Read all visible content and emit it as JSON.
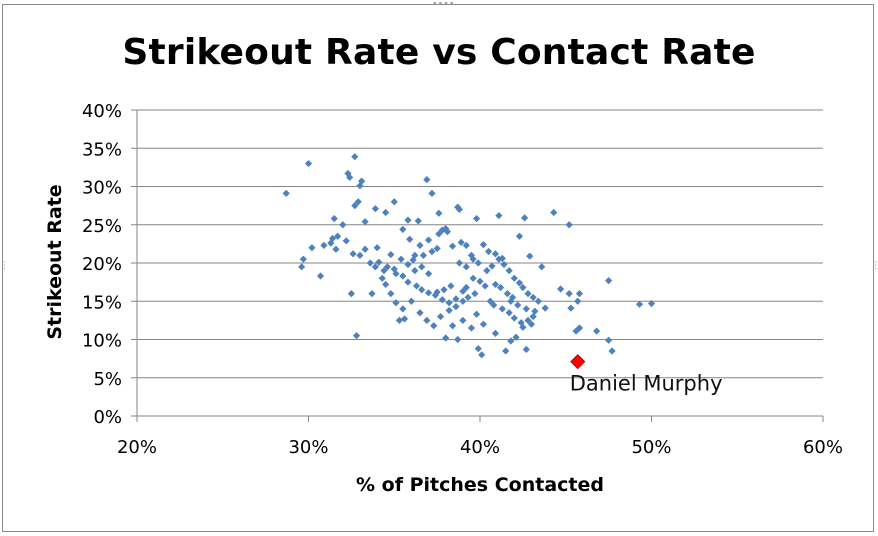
{
  "chart_data": {
    "type": "scatter",
    "title": "Strikeout Rate vs Contact Rate",
    "xlabel": "% of Pitches Contacted",
    "ylabel": "Strikeout Rate",
    "xlim": [
      0.2,
      0.6
    ],
    "ylim": [
      0,
      0.4
    ],
    "xticks": [
      "20%",
      "30%",
      "40%",
      "50%",
      "60%"
    ],
    "yticks": [
      "0%",
      "5%",
      "10%",
      "15%",
      "20%",
      "25%",
      "30%",
      "35%",
      "40%"
    ],
    "grid": "horizontal",
    "colors": {
      "series": "#4f81bd",
      "highlight": "#ff0000",
      "grid": "#868686"
    },
    "series": [
      {
        "points": [
          [
            0.287,
            0.291
          ],
          [
            0.3,
            0.33
          ],
          [
            0.327,
            0.339
          ],
          [
            0.324,
            0.312
          ],
          [
            0.329,
            0.28
          ],
          [
            0.331,
            0.307
          ],
          [
            0.33,
            0.301
          ],
          [
            0.339,
            0.271
          ],
          [
            0.333,
            0.254
          ],
          [
            0.327,
            0.275
          ],
          [
            0.323,
            0.317
          ],
          [
            0.315,
            0.258
          ],
          [
            0.32,
            0.25
          ],
          [
            0.317,
            0.235
          ],
          [
            0.313,
            0.226
          ],
          [
            0.309,
            0.223
          ],
          [
            0.316,
            0.218
          ],
          [
            0.302,
            0.22
          ],
          [
            0.297,
            0.205
          ],
          [
            0.296,
            0.195
          ],
          [
            0.307,
            0.183
          ],
          [
            0.314,
            0.232
          ],
          [
            0.322,
            0.229
          ],
          [
            0.326,
            0.212
          ],
          [
            0.33,
            0.21
          ],
          [
            0.345,
            0.266
          ],
          [
            0.35,
            0.28
          ],
          [
            0.355,
            0.244
          ],
          [
            0.358,
            0.256
          ],
          [
            0.364,
            0.255
          ],
          [
            0.369,
            0.309
          ],
          [
            0.372,
            0.291
          ],
          [
            0.376,
            0.265
          ],
          [
            0.378,
            0.243
          ],
          [
            0.381,
            0.241
          ],
          [
            0.387,
            0.273
          ],
          [
            0.388,
            0.27
          ],
          [
            0.359,
            0.231
          ],
          [
            0.365,
            0.223
          ],
          [
            0.37,
            0.23
          ],
          [
            0.375,
            0.219
          ],
          [
            0.362,
            0.21
          ],
          [
            0.354,
            0.205
          ],
          [
            0.348,
            0.211
          ],
          [
            0.34,
            0.22
          ],
          [
            0.336,
            0.2
          ],
          [
            0.339,
            0.195
          ],
          [
            0.344,
            0.19
          ],
          [
            0.351,
            0.186
          ],
          [
            0.355,
            0.183
          ],
          [
            0.358,
            0.175
          ],
          [
            0.363,
            0.17
          ],
          [
            0.366,
            0.165
          ],
          [
            0.37,
            0.161
          ],
          [
            0.374,
            0.158
          ],
          [
            0.378,
            0.152
          ],
          [
            0.382,
            0.148
          ],
          [
            0.386,
            0.153
          ],
          [
            0.39,
            0.163
          ],
          [
            0.392,
            0.168
          ],
          [
            0.395,
            0.21
          ],
          [
            0.399,
            0.2
          ],
          [
            0.398,
            0.258
          ],
          [
            0.402,
            0.224
          ],
          [
            0.405,
            0.215
          ],
          [
            0.409,
            0.212
          ],
          [
            0.411,
            0.205
          ],
          [
            0.414,
            0.198
          ],
          [
            0.417,
            0.19
          ],
          [
            0.42,
            0.18
          ],
          [
            0.423,
            0.174
          ],
          [
            0.425,
            0.168
          ],
          [
            0.428,
            0.16
          ],
          [
            0.431,
            0.155
          ],
          [
            0.434,
            0.15
          ],
          [
            0.411,
            0.262
          ],
          [
            0.426,
            0.259
          ],
          [
            0.423,
            0.235
          ],
          [
            0.429,
            0.209
          ],
          [
            0.436,
            0.195
          ],
          [
            0.443,
            0.266
          ],
          [
            0.452,
            0.25
          ],
          [
            0.447,
            0.166
          ],
          [
            0.452,
            0.16
          ],
          [
            0.458,
            0.16
          ],
          [
            0.457,
            0.15
          ],
          [
            0.453,
            0.141
          ],
          [
            0.458,
            0.115
          ],
          [
            0.456,
            0.111
          ],
          [
            0.438,
            0.141
          ],
          [
            0.432,
            0.137
          ],
          [
            0.428,
            0.125
          ],
          [
            0.425,
            0.116
          ],
          [
            0.421,
            0.103
          ],
          [
            0.418,
            0.098
          ],
          [
            0.415,
            0.085
          ],
          [
            0.427,
            0.087
          ],
          [
            0.409,
            0.108
          ],
          [
            0.402,
            0.12
          ],
          [
            0.398,
            0.133
          ],
          [
            0.395,
            0.115
          ],
          [
            0.39,
            0.125
          ],
          [
            0.387,
            0.1
          ],
          [
            0.384,
            0.118
          ],
          [
            0.38,
            0.102
          ],
          [
            0.377,
            0.13
          ],
          [
            0.373,
            0.118
          ],
          [
            0.369,
            0.125
          ],
          [
            0.356,
            0.127
          ],
          [
            0.353,
            0.125
          ],
          [
            0.351,
            0.148
          ],
          [
            0.348,
            0.16
          ],
          [
            0.345,
            0.172
          ],
          [
            0.343,
            0.18
          ],
          [
            0.337,
            0.16
          ],
          [
            0.325,
            0.16
          ],
          [
            0.328,
            0.105
          ],
          [
            0.399,
            0.088
          ],
          [
            0.401,
            0.08
          ],
          [
            0.409,
            0.172
          ],
          [
            0.412,
            0.168
          ],
          [
            0.416,
            0.16
          ],
          [
            0.419,
            0.155
          ],
          [
            0.404,
            0.19
          ],
          [
            0.407,
            0.196
          ],
          [
            0.375,
            0.162
          ],
          [
            0.379,
            0.165
          ],
          [
            0.383,
            0.17
          ],
          [
            0.362,
            0.19
          ],
          [
            0.366,
            0.195
          ],
          [
            0.37,
            0.186
          ],
          [
            0.355,
            0.14
          ],
          [
            0.36,
            0.15
          ],
          [
            0.365,
            0.135
          ],
          [
            0.388,
            0.2
          ],
          [
            0.392,
            0.195
          ],
          [
            0.396,
            0.18
          ],
          [
            0.4,
            0.176
          ],
          [
            0.403,
            0.17
          ],
          [
            0.406,
            0.15
          ],
          [
            0.408,
            0.145
          ],
          [
            0.413,
            0.14
          ],
          [
            0.417,
            0.135
          ],
          [
            0.42,
            0.128
          ],
          [
            0.424,
            0.122
          ],
          [
            0.43,
            0.12
          ],
          [
            0.475,
            0.177
          ],
          [
            0.468,
            0.111
          ],
          [
            0.475,
            0.099
          ],
          [
            0.477,
            0.085
          ],
          [
            0.493,
            0.146
          ],
          [
            0.5,
            0.147
          ],
          [
            0.382,
            0.138
          ],
          [
            0.386,
            0.143
          ],
          [
            0.39,
            0.15
          ],
          [
            0.393,
            0.155
          ],
          [
            0.397,
            0.16
          ],
          [
            0.341,
            0.201
          ],
          [
            0.333,
            0.218
          ],
          [
            0.346,
            0.195
          ],
          [
            0.35,
            0.192
          ],
          [
            0.358,
            0.198
          ],
          [
            0.361,
            0.204
          ],
          [
            0.367,
            0.21
          ],
          [
            0.372,
            0.215
          ],
          [
            0.376,
            0.238
          ],
          [
            0.38,
            0.245
          ],
          [
            0.384,
            0.222
          ],
          [
            0.389,
            0.227
          ],
          [
            0.392,
            0.223
          ],
          [
            0.396,
            0.205
          ],
          [
            0.413,
            0.206
          ],
          [
            0.418,
            0.15
          ],
          [
            0.422,
            0.145
          ],
          [
            0.427,
            0.14
          ],
          [
            0.431,
            0.13
          ]
        ]
      },
      {
        "highlight": true,
        "points": [
          [
            0.457,
            0.071
          ]
        ],
        "label": "Daniel Murphy"
      }
    ]
  }
}
